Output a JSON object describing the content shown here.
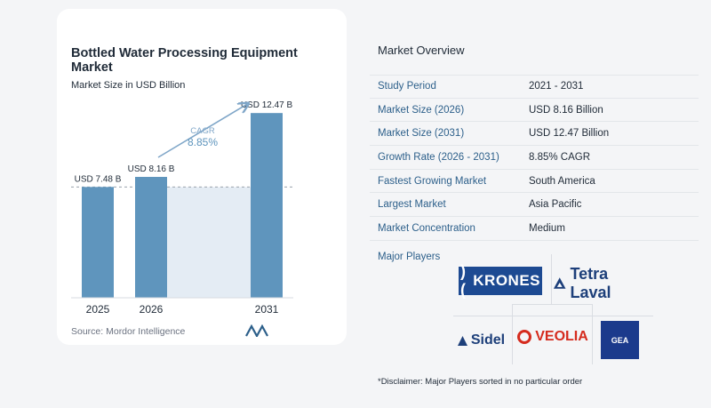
{
  "chart_title": "Bottled Water Processing Equipment Market",
  "chart_subtitle": "Market Size in USD Billion",
  "chart_data": {
    "type": "bar",
    "title": "Bottled Water Processing Equipment Market",
    "subtitle": "Market Size in USD Billion",
    "categories": [
      "2025",
      "2026",
      "2031"
    ],
    "values": [
      7.48,
      8.16,
      12.47
    ],
    "value_labels": [
      "USD 7.48 B",
      "USD 8.16 B",
      "USD 12.47 B"
    ],
    "ylim": [
      0,
      13.5
    ],
    "cagr_label": "CAGR",
    "cagr_value": "8.85%",
    "bar_color": "#5f95bd",
    "cagr_color": "#7fa6c8",
    "highlight_color": "#e4ecf4"
  },
  "source": "Source:  Mordor Intelligence",
  "overview": {
    "title": "Market Overview",
    "rows": [
      {
        "key": "Study Period",
        "value": "2021 - 2031"
      },
      {
        "key": "Market Size (2026)",
        "value": "USD 8.16 Billion"
      },
      {
        "key": "Market Size (2031)",
        "value": "USD 12.47 Billion"
      },
      {
        "key": "Growth Rate (2026 - 2031)",
        "value": "8.85% CAGR"
      },
      {
        "key": "Fastest Growing Market",
        "value": "South America"
      },
      {
        "key": "Largest Market",
        "value": "Asia Pacific"
      },
      {
        "key": "Market Concentration",
        "value": "Medium"
      }
    ]
  },
  "players": {
    "title": "Major Players",
    "logos": [
      "KRONES",
      "Tetra Laval",
      "Sidel",
      "VEOLIA",
      "GEA"
    ]
  },
  "disclaimer": "*Disclaimer: Major Players sorted in no particular order",
  "colors": {
    "accent": "#2c5f8a",
    "krones": "#1d4a92",
    "veolia": "#d52b1e",
    "gea": "#1b3a8c"
  }
}
